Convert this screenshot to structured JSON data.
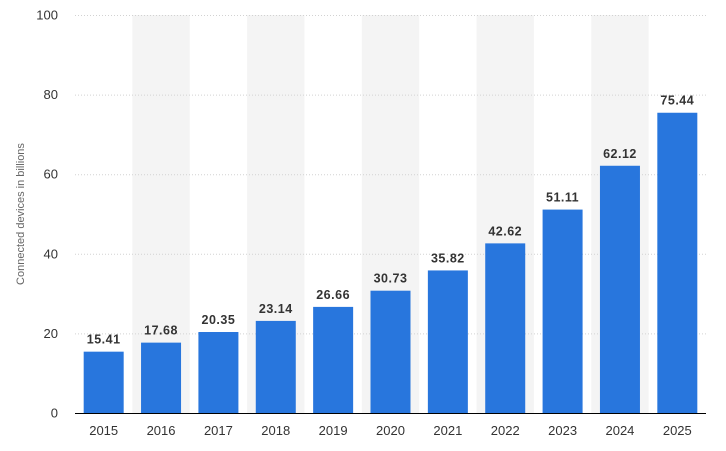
{
  "colors": {
    "bar": "#2876DD",
    "stripe": "#F4F4F4",
    "grid": "#D2D2D2",
    "axis": "#000000"
  },
  "chart_data": {
    "type": "bar",
    "categories": [
      "2015",
      "2016",
      "2017",
      "2018",
      "2019",
      "2020",
      "2021",
      "2022",
      "2023",
      "2024",
      "2025"
    ],
    "values": [
      15.41,
      17.68,
      20.35,
      23.14,
      26.66,
      30.73,
      35.82,
      42.62,
      51.11,
      62.12,
      75.44
    ],
    "value_labels": [
      "15.41",
      "17.68",
      "20.35",
      "23.14",
      "26.66",
      "30.73",
      "35.82",
      "42.62",
      "51.11",
      "62.12",
      "75.44"
    ],
    "xlabel": "",
    "ylabel": "Connected devices in billions",
    "ylim": [
      0,
      100
    ],
    "yticks": [
      0,
      20,
      40,
      60,
      80,
      100
    ],
    "grid": true,
    "alternating_column_stripes": true
  }
}
